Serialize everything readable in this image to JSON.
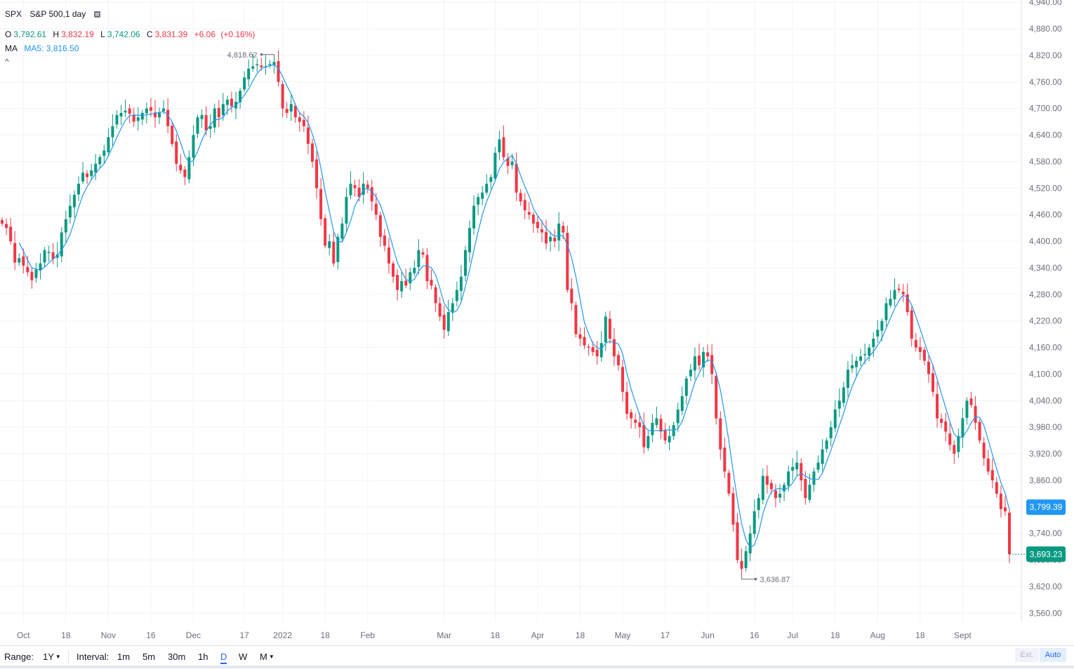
{
  "header": {
    "symbol": "SPX",
    "description": "S&P 500,1 day",
    "ohlc": {
      "o_label": "O",
      "o_value": "3,792.61",
      "h_label": "H",
      "h_value": "3,832.19",
      "l_label": "L",
      "l_value": "3,742.06",
      "c_label": "C",
      "c_value": "3,831.39",
      "change": "+6.06",
      "change_pct": "(+0.16%)"
    },
    "ma": {
      "label": "MA",
      "name": "MA5:",
      "value": "3,816.50"
    },
    "collapse_glyph": "^"
  },
  "colors": {
    "up": "#089981",
    "down": "#f23645",
    "ma": "#2196f3",
    "grid": "#f0f3fa",
    "axis_text": "#6a6d78"
  },
  "chart_data": {
    "type": "candlestick",
    "symbol": "SPX",
    "y_axis": {
      "ticks": [
        "3,560.00",
        "3,620.00",
        "3,680.00",
        "3,740.00",
        "3,800.00",
        "3,860.00",
        "3,920.00",
        "3,980.00",
        "4,040.00",
        "4,100.00",
        "4,160.00",
        "4,220.00",
        "4,280.00",
        "4,340.00",
        "4,400.00",
        "4,460.00",
        "4,520.00",
        "4,580.00",
        "4,640.00",
        "4,700.00",
        "4,760.00",
        "4,820.00",
        "4,880.00",
        "4,940.00"
      ],
      "range": [
        3540,
        4945
      ]
    },
    "x_axis": {
      "labels": [
        "Oct",
        "18",
        "Nov",
        "16",
        "Dec",
        "17",
        "2022",
        "18",
        "Feb",
        "Mar",
        "18",
        "Apr",
        "18",
        "May",
        "17",
        "Jun",
        "16",
        "Jul",
        "18",
        "Aug",
        "18",
        "Sept"
      ],
      "label_index": [
        5,
        15,
        25,
        35,
        45,
        57,
        66,
        76,
        86,
        104,
        116,
        126,
        136,
        146,
        156,
        166,
        177,
        186,
        196,
        206,
        216,
        226
      ]
    },
    "markers": {
      "high": "4,818.62",
      "low": "3,636.87"
    },
    "price_labels": {
      "ma_last": "3,799.39",
      "last_close": "3,693.23"
    },
    "ma_period": 5,
    "close": [
      4440,
      4430,
      4400,
      4352,
      4362,
      4345,
      4330,
      4312,
      4336,
      4350,
      4380,
      4376,
      4360,
      4370,
      4420,
      4450,
      4480,
      4505,
      4530,
      4555,
      4545,
      4560,
      4575,
      4590,
      4605,
      4635,
      4660,
      4685,
      4690,
      4695,
      4688,
      4670,
      4680,
      4690,
      4700,
      4695,
      4680,
      4690,
      4700,
      4660,
      4620,
      4575,
      4560,
      4545,
      4590,
      4640,
      4680,
      4685,
      4650,
      4660,
      4700,
      4680,
      4710,
      4720,
      4705,
      4715,
      4740,
      4770,
      4790,
      4795,
      4800,
      4793,
      4795,
      4800,
      4805,
      4760,
      4700,
      4690,
      4710,
      4680,
      4670,
      4660,
      4620,
      4580,
      4520,
      4450,
      4390,
      4400,
      4350,
      4410,
      4440,
      4500,
      4530,
      4520,
      4500,
      4530,
      4520,
      4490,
      4460,
      4410,
      4390,
      4350,
      4320,
      4290,
      4310,
      4300,
      4330,
      4340,
      4380,
      4370,
      4310,
      4300,
      4260,
      4230,
      4200,
      4240,
      4260,
      4290,
      4320,
      4380,
      4430,
      4480,
      4500,
      4510,
      4530,
      4545,
      4600,
      4630,
      4590,
      4570,
      4580,
      4510,
      4490,
      4470,
      4460,
      4440,
      4430,
      4420,
      4395,
      4410,
      4400,
      4440,
      4420,
      4290,
      4260,
      4190,
      4180,
      4165,
      4160,
      4150,
      4140,
      4170,
      4230,
      4180,
      4140,
      4120,
      4060,
      4010,
      4000,
      3990,
      3980,
      3935,
      3960,
      3990,
      4000,
      3970,
      3950,
      3960,
      3985,
      4020,
      4050,
      4090,
      4110,
      4140,
      4120,
      4150,
      4140,
      4100,
      4000,
      3930,
      3880,
      3830,
      3760,
      3680,
      3660,
      3700,
      3740,
      3790,
      3820,
      3870,
      3850,
      3840,
      3820,
      3830,
      3850,
      3880,
      3890,
      3900,
      3860,
      3820,
      3850,
      3880,
      3900,
      3930,
      3950,
      3980,
      4020,
      4040,
      4070,
      4110,
      4120,
      4130,
      4140,
      4145,
      4160,
      4180,
      4200,
      4220,
      4260,
      4270,
      4290,
      4290,
      4280,
      4240,
      4180,
      4160,
      4150,
      4130,
      4100,
      4060,
      4000,
      3990,
      3970,
      3940,
      3920,
      3960,
      4000,
      4040,
      4030,
      3990,
      3950,
      3910,
      3880,
      3860,
      3830,
      3795,
      3790,
      3693
    ]
  },
  "price_axis": {
    "ext_label": "Ext.",
    "auto_label": "Auto"
  },
  "toolbar": {
    "range_label": "Range:",
    "range_value": "1Y",
    "interval_label": "Interval:",
    "intervals": [
      "1m",
      "5m",
      "30m",
      "1h",
      "D",
      "W",
      "M"
    ],
    "active_interval": "D"
  }
}
